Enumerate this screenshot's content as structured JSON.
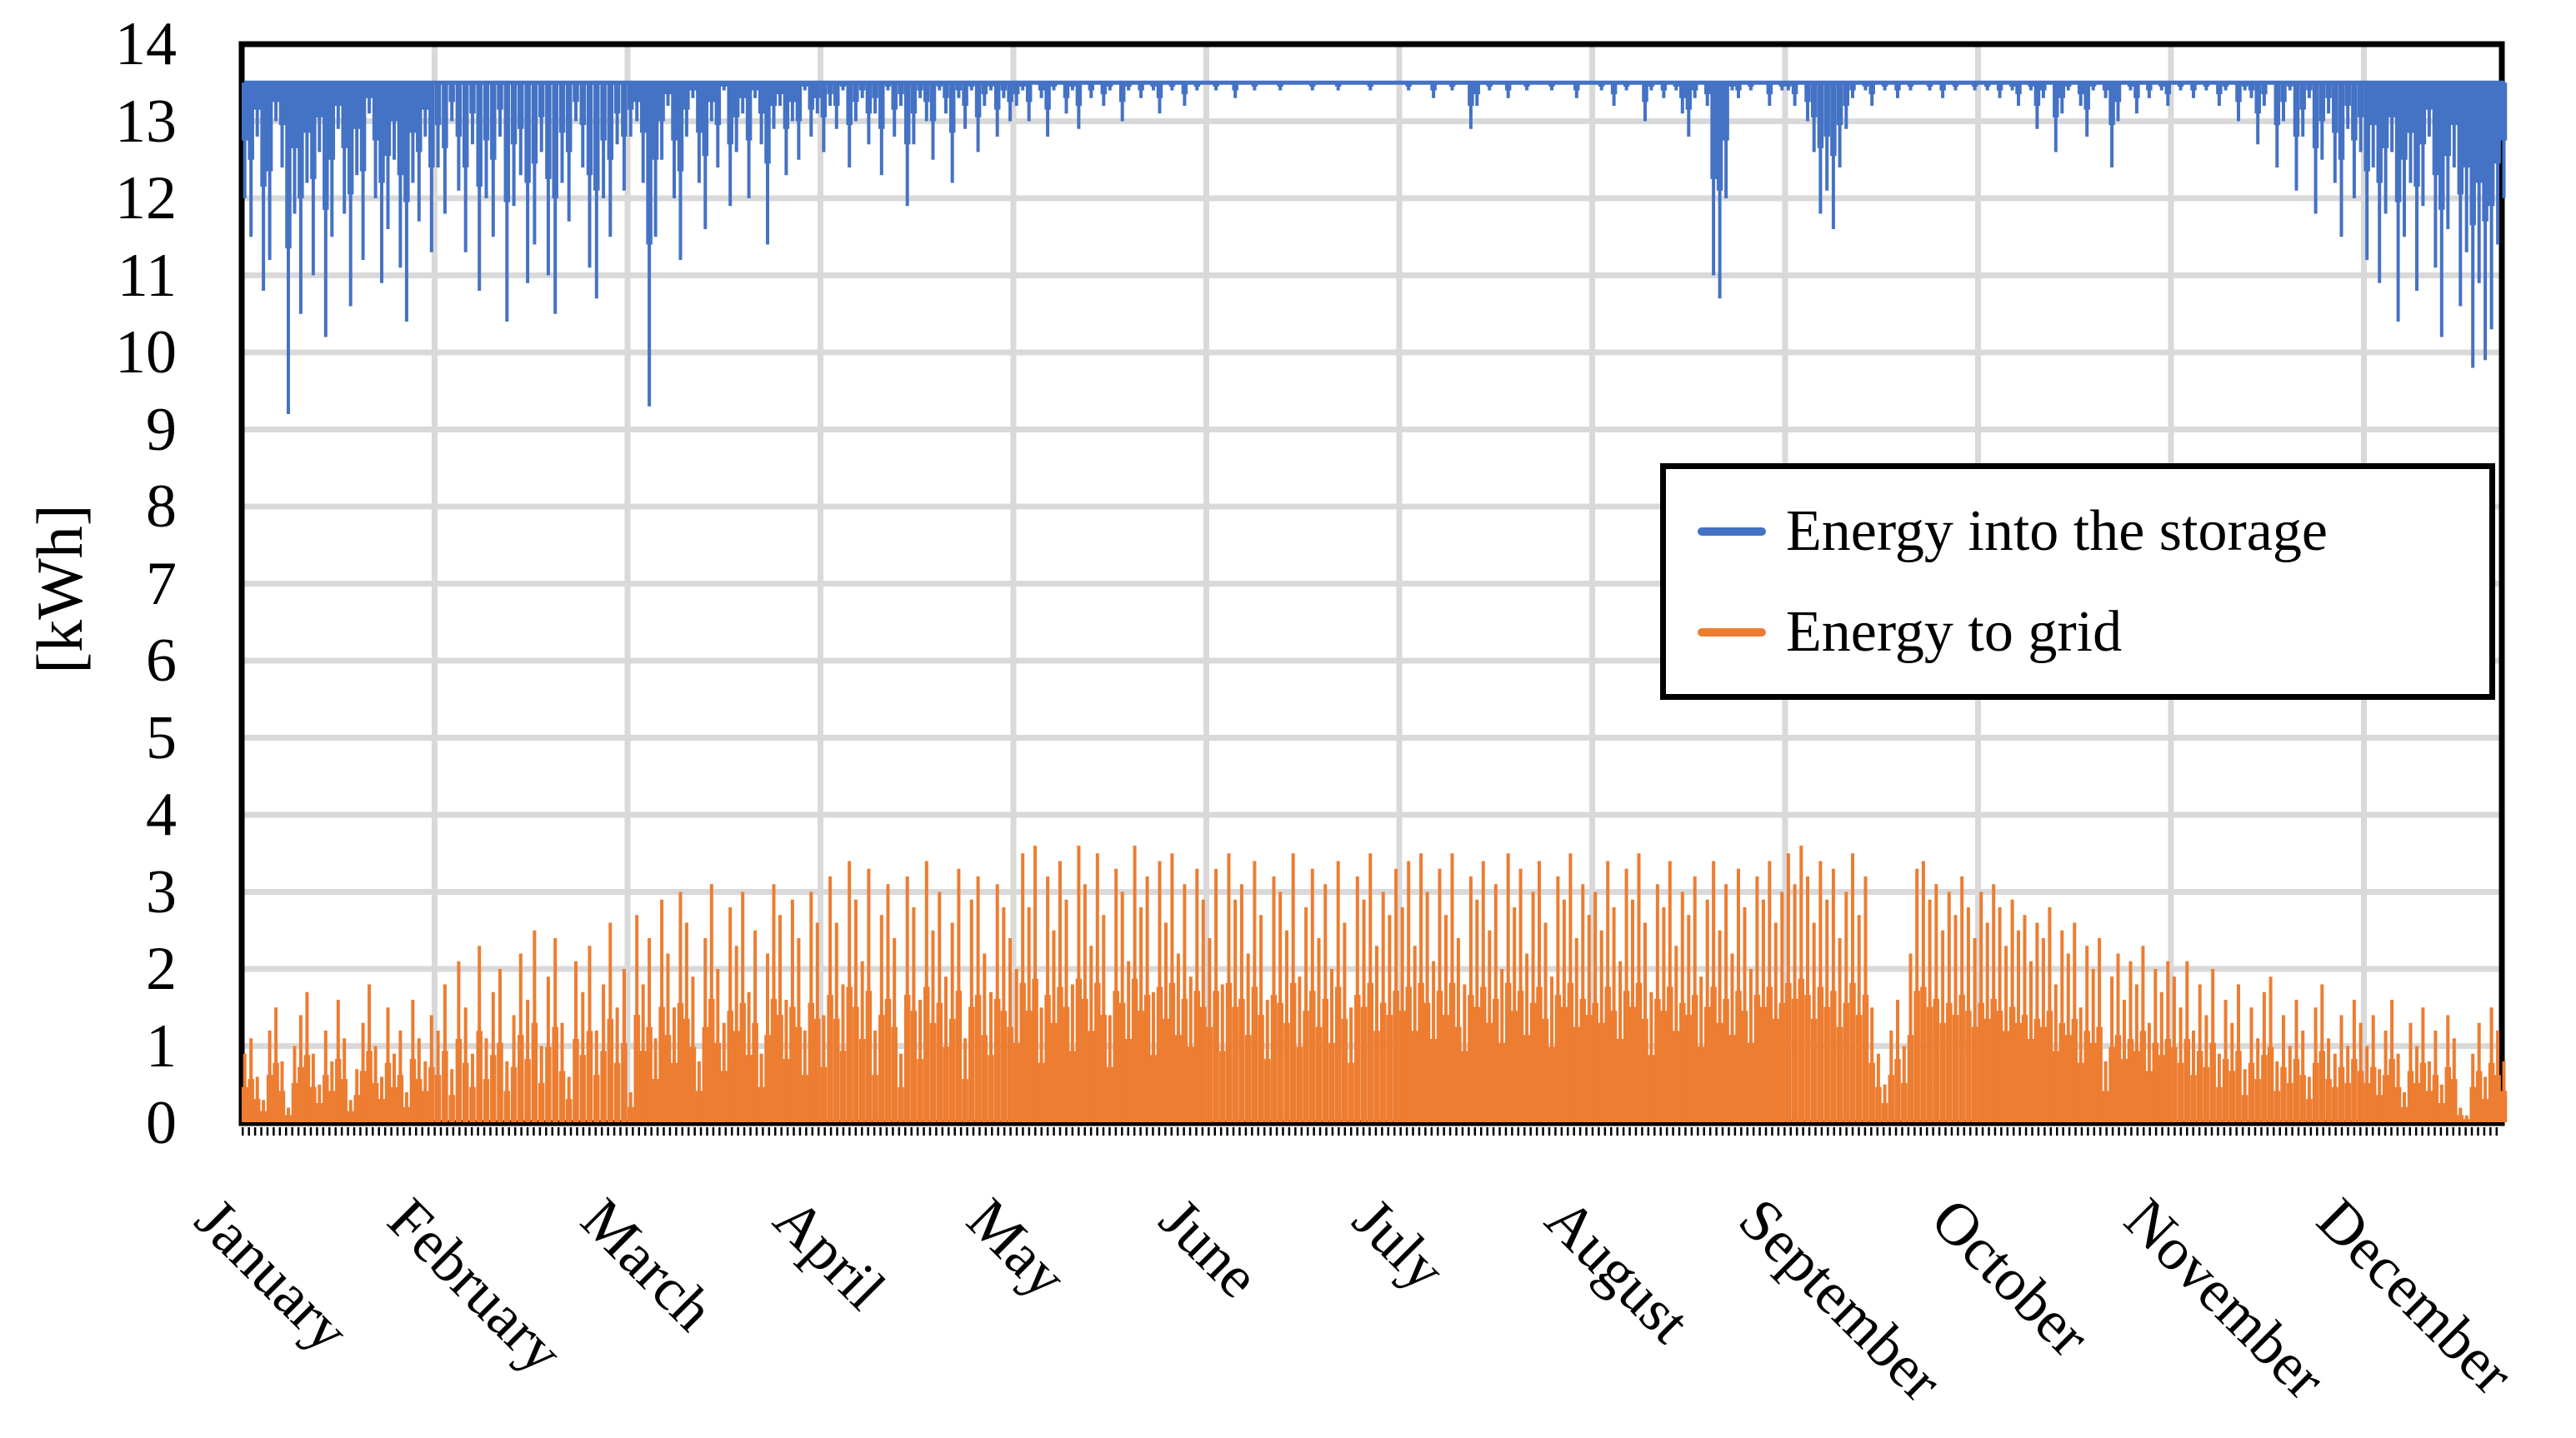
{
  "figure": {
    "background": "#ffffff"
  },
  "y_axis": {
    "title": "[kWh]",
    "tick_labels": [
      "0",
      "1",
      "2",
      "3",
      "4",
      "5",
      "6",
      "7",
      "8",
      "9",
      "10",
      "11",
      "12",
      "13",
      "14"
    ]
  },
  "x_axis": {
    "month_labels": [
      "January",
      "February",
      "March",
      "April",
      "May",
      "June",
      "July",
      "August",
      "September",
      "October",
      "November",
      "December"
    ]
  },
  "legend": {
    "items": [
      {
        "label": "Energy into the storage",
        "color": "#4472C4"
      },
      {
        "label": "Energy to grid",
        "color": "#ED7D31"
      }
    ]
  },
  "colors": {
    "series_blue": "#4472C4",
    "series_orange": "#ED7D31",
    "gridline": "#D9D9D9",
    "axis": "#000000",
    "background": "#ffffff"
  },
  "chart_data": {
    "type": "line",
    "title": "",
    "xlabel": "",
    "ylabel": "[kWh]",
    "ylim": [
      0,
      14
    ],
    "grid": true,
    "legend_position": "inside-right",
    "categories": [
      "January",
      "February",
      "March",
      "April",
      "May",
      "June",
      "July",
      "August",
      "September",
      "October",
      "November",
      "December"
    ],
    "days_per_month": [
      31,
      28,
      31,
      30,
      31,
      30,
      31,
      31,
      30,
      31,
      30,
      31
    ],
    "series": [
      {
        "name": "Energy into the storage",
        "color": "#4472C4",
        "style": "dips-from-ceiling",
        "ceiling_value": 13.5,
        "daily_min_by_month": [
          [
            12.0,
            11.5,
            12.8,
            10.8,
            11.2,
            13.0,
            12.4,
            9.2,
            11.8,
            10.5,
            12.2,
            11.0,
            12.6,
            10.2,
            11.5,
            12.9,
            11.8,
            10.6,
            12.3,
            11.2,
            13.1,
            12.0,
            10.9,
            11.6,
            12.5,
            11.1,
            10.4,
            12.2,
            11.7,
            12.8,
            11.3
          ],
          [
            12.4,
            11.8,
            13.0,
            12.1,
            11.3,
            12.7,
            10.8,
            12.0,
            11.5,
            12.8,
            10.4,
            11.9,
            12.3,
            10.9,
            11.4,
            12.6,
            11.0,
            10.5,
            12.2,
            11.7,
            13.0,
            12.4,
            11.1,
            10.7,
            12.0,
            11.5,
            12.7,
            12.1
          ],
          [
            12.8,
            13.0,
            12.2,
            9.3,
            11.5,
            12.5,
            13.2,
            12.0,
            11.2,
            12.8,
            13.3,
            12.2,
            11.6,
            13.0,
            12.4,
            13.4,
            11.9,
            12.6,
            13.1,
            12.0,
            13.3,
            12.7,
            11.4,
            12.9,
            13.2,
            12.3,
            13.0,
            12.5,
            13.4,
            12.8,
            13.1
          ],
          [
            12.6,
            13.2,
            12.9,
            13.4,
            12.4,
            13.0,
            13.3,
            12.7,
            13.1,
            12.3,
            13.4,
            12.8,
            13.2,
            11.9,
            12.7,
            13.3,
            13.0,
            12.5,
            13.4,
            13.1,
            12.2,
            13.3,
            12.9,
            13.4,
            12.6,
            13.2,
            13.4,
            12.8,
            13.3,
            13.0
          ],
          [
            13.2,
            13.4,
            13.0,
            13.5,
            13.3,
            12.8,
            13.4,
            13.5,
            13.1,
            13.4,
            12.9,
            13.5,
            13.3,
            13.5,
            13.2,
            13.4,
            13.5,
            13.0,
            13.4,
            13.5,
            13.3,
            13.5,
            13.4,
            13.1,
            13.5,
            13.4,
            13.5,
            13.2,
            13.5,
            13.4,
            13.5
          ],
          [
            13.5,
            13.4,
            13.5,
            13.5,
            13.3,
            13.5,
            13.5,
            13.4,
            13.5,
            13.5,
            13.5,
            13.4,
            13.5,
            13.5,
            13.5,
            13.5,
            13.4,
            13.5,
            13.5,
            13.5,
            13.4,
            13.5,
            13.5,
            13.5,
            13.5,
            13.4,
            13.5,
            13.5,
            13.5,
            13.5
          ],
          [
            13.5,
            13.4,
            13.5,
            13.5,
            13.5,
            13.3,
            13.5,
            13.5,
            13.4,
            13.5,
            13.5,
            12.9,
            13.2,
            13.5,
            13.4,
            13.5,
            13.5,
            13.3,
            13.5,
            13.5,
            13.4,
            13.5,
            13.5,
            13.5,
            13.4,
            13.5,
            13.5,
            13.5,
            13.3,
            13.5,
            13.5
          ],
          [
            13.5,
            13.4,
            13.5,
            13.2,
            13.5,
            13.4,
            13.5,
            13.5,
            13.0,
            13.4,
            13.5,
            13.3,
            13.5,
            13.4,
            13.1,
            12.8,
            13.3,
            13.5,
            13.2,
            11.0,
            10.7,
            12.0,
            13.4,
            13.3,
            13.5,
            13.4,
            13.5,
            13.5,
            13.2,
            13.5,
            13.4
          ],
          [
            13.4,
            13.2,
            13.5,
            13.0,
            12.6,
            11.8,
            12.1,
            11.6,
            12.4,
            12.9,
            13.3,
            13.5,
            13.4,
            13.2,
            13.5,
            13.4,
            13.5,
            13.3,
            13.5,
            13.4,
            13.5,
            13.5,
            13.4,
            13.5,
            13.3,
            13.5,
            13.4,
            13.5,
            13.5,
            13.4
          ],
          [
            13.5,
            13.4,
            13.5,
            13.3,
            13.5,
            13.4,
            13.2,
            13.5,
            13.4,
            12.9,
            13.3,
            13.5,
            12.6,
            13.1,
            13.4,
            13.5,
            13.2,
            12.8,
            13.4,
            13.5,
            13.3,
            12.4,
            13.0,
            13.5,
            13.4,
            13.1,
            13.5,
            13.3,
            13.5,
            13.4,
            13.2
          ],
          [
            13.5,
            13.4,
            13.5,
            13.3,
            13.5,
            13.4,
            13.5,
            13.2,
            13.4,
            13.5,
            13.0,
            13.4,
            13.3,
            12.7,
            13.2,
            13.5,
            12.4,
            13.0,
            13.4,
            12.1,
            12.8,
            13.3,
            11.8,
            12.5,
            13.1,
            12.2,
            11.5,
            12.9,
            12.0,
            12.6
          ],
          [
            11.2,
            12.4,
            10.9,
            11.8,
            12.6,
            10.4,
            11.5,
            12.2,
            10.8,
            11.9,
            12.8,
            11.1,
            10.2,
            11.6,
            12.4,
            10.6,
            11.3,
            9.8,
            10.9,
            9.9,
            10.3,
            11.4,
            12.0,
            11.1,
            10.5,
            11.8,
            12.3,
            10.9,
            11.5,
            12.1,
            11.0
          ]
        ]
      },
      {
        "name": "Energy to grid",
        "color": "#ED7D31",
        "style": "spikes-from-zero",
        "daily_max_by_month": [
          [
            0.9,
            1.1,
            0.6,
            0.3,
            1.2,
            1.5,
            0.8,
            0.2,
            1.0,
            1.4,
            1.7,
            0.9,
            0.5,
            1.2,
            0.8,
            1.6,
            1.1,
            0.3,
            0.7,
            1.3,
            1.8,
            1.0,
            0.6,
            1.5,
            0.9,
            1.2,
            0.4,
            1.6,
            1.1,
            0.8,
            1.4
          ],
          [
            1.2,
            1.8,
            0.7,
            2.1,
            1.5,
            0.9,
            2.3,
            1.1,
            1.7,
            2.0,
            0.8,
            1.4,
            2.2,
            1.6,
            2.5,
            1.0,
            1.9,
            2.4,
            1.3,
            0.6,
            2.1,
            1.7,
            2.3,
            1.2,
            1.8,
            2.6,
            1.5,
            2.0
          ],
          [
            0.4,
            2.7,
            1.8,
            2.4,
            1.1,
            2.9,
            2.2,
            1.5,
            3.0,
            2.6,
            1.9,
            0.8,
            2.4,
            3.1,
            2.0,
            1.3,
            2.8,
            2.3,
            3.0,
            1.7,
            2.5,
            0.9,
            2.2,
            3.1,
            2.7,
            1.6,
            2.9,
            2.4,
            1.2,
            3.0,
            2.6
          ],
          [
            1.4,
            3.2,
            2.6,
            1.8,
            3.4,
            2.9,
            2.1,
            3.3,
            1.2,
            2.7,
            3.1,
            2.4,
            0.9,
            3.2,
            2.8,
            1.6,
            3.4,
            2.5,
            3.0,
            1.9,
            2.6,
            3.3,
            1.1,
            2.9,
            3.2,
            2.2,
            1.7,
            3.1,
            2.8,
            2.4
          ],
          [
            2.0,
            3.5,
            2.8,
            3.6,
            1.5,
            3.2,
            2.5,
            3.4,
            2.9,
            1.8,
            3.6,
            3.1,
            2.3,
            3.5,
            2.7,
            1.4,
            3.3,
            3.0,
            2.1,
            3.6,
            2.8,
            3.2,
            1.7,
            3.4,
            2.6,
            3.5,
            2.2,
            3.1,
            1.9,
            3.3,
            2.9
          ],
          [
            2.4,
            3.3,
            1.8,
            3.5,
            2.9,
            3.1,
            2.2,
            3.4,
            2.7,
            1.6,
            3.2,
            3.0,
            2.5,
            3.5,
            1.9,
            2.8,
            3.3,
            2.4,
            3.1,
            2.0,
            3.4,
            2.6,
            1.5,
            3.2,
            2.9,
            3.5,
            2.3,
            3.0,
            2.7,
            3.3
          ],
          [
            2.8,
            3.4,
            2.3,
            3.5,
            3.0,
            2.1,
            3.3,
            2.7,
            3.5,
            2.4,
            1.8,
            3.2,
            2.9,
            3.4,
            2.5,
            3.1,
            2.0,
            3.5,
            2.8,
            3.3,
            2.2,
            3.0,
            3.4,
            2.6,
            1.9,
            3.2,
            2.9,
            3.5,
            2.4,
            3.1,
            2.7
          ],
          [
            3.0,
            2.5,
            3.4,
            2.8,
            2.1,
            3.3,
            2.9,
            3.5,
            2.6,
            1.7,
            3.1,
            2.8,
            3.4,
            2.3,
            3.0,
            2.7,
            3.2,
            1.9,
            2.9,
            3.4,
            2.5,
            3.1,
            2.2,
            3.3,
            2.8,
            2.0,
            3.2,
            2.9,
            3.4,
            2.6,
            3.0
          ],
          [
            3.5,
            3.1,
            3.6,
            3.2,
            2.6,
            3.4,
            2.9,
            3.3,
            2.4,
            3.0,
            3.5,
            2.7,
            3.2,
            1.5,
            0.9,
            0.5,
            1.2,
            1.6,
            1.0,
            2.2,
            3.3,
            3.4,
            2.9,
            3.1,
            2.5,
            3.0,
            2.7,
            3.2,
            2.8,
            2.4
          ],
          [
            3.0,
            2.6,
            3.1,
            2.8,
            2.3,
            2.9,
            2.5,
            2.7,
            2.1,
            2.6,
            2.4,
            2.8,
            1.8,
            2.5,
            2.2,
            2.6,
            1.5,
            2.3,
            2.0,
            2.4,
            0.8,
            1.9,
            2.2,
            1.6,
            2.1,
            1.8,
            2.3,
            1.3,
            2.0,
            1.7,
            2.1
          ],
          [
            1.9,
            1.5,
            2.1,
            1.2,
            1.8,
            1.4,
            2.0,
            0.9,
            1.6,
            1.3,
            1.8,
            0.7,
            1.5,
            1.1,
            1.7,
            1.9,
            0.8,
            1.4,
            1.0,
            1.6,
            1.2,
            0.6,
            1.5,
            1.8,
            1.1,
            0.9,
            1.4,
            1.0,
            1.6,
            1.3
          ],
          [
            1.0,
            1.4,
            0.7,
            1.2,
            1.6,
            0.9,
            0.4,
            1.3,
            1.0,
            1.5,
            0.8,
            1.2,
            0.5,
            1.4,
            1.1,
            0.2,
            0.1,
            0.9,
            1.3,
            0.6,
            1.5,
            1.2,
            0.8,
            1.0,
            1.4,
            0.7,
            1.1,
            0.9,
            1.3,
            0.5,
            1.2
          ]
        ]
      }
    ]
  }
}
